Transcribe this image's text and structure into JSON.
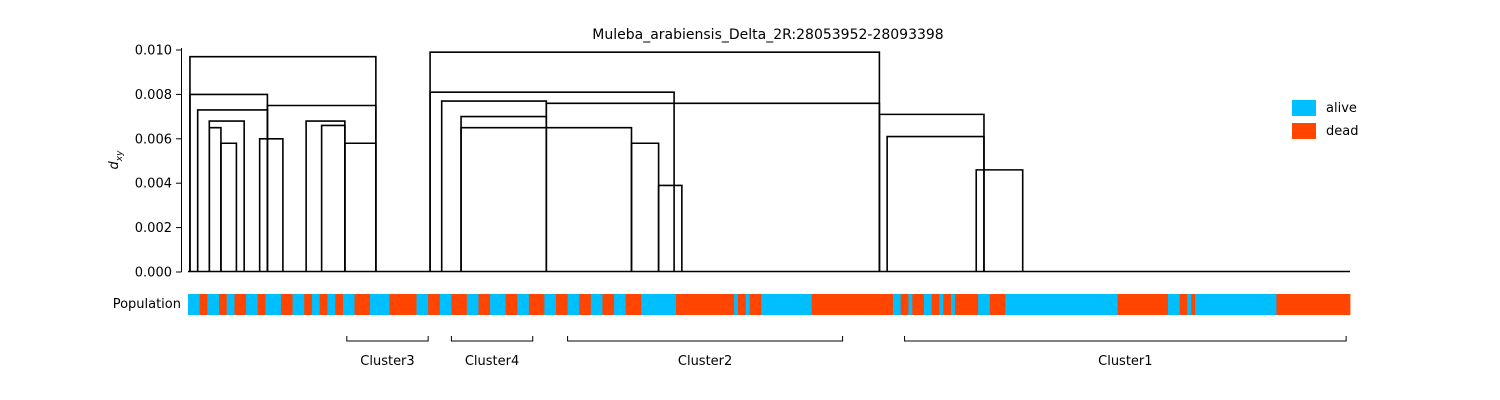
{
  "chart_data": {
    "type": "dendrogram",
    "title": "Muleba_arabiensis_Delta_2R:28053952-28093398",
    "ylabel_main": "d",
    "ylabel_sub": "xy",
    "ylim": [
      0,
      0.01
    ],
    "y_ticks": [
      "0.000",
      "0.002",
      "0.004",
      "0.006",
      "0.008",
      "0.010"
    ],
    "legend_placement": "right",
    "legend": [
      {
        "label": "alive",
        "color": "#00BFFF"
      },
      {
        "label": "dead",
        "color": "#FF4500"
      }
    ],
    "population_label": "Population",
    "leaf_count": 300,
    "merges": [
      {
        "left_leaf": 0,
        "right_leaf": 48,
        "height": 0.0097
      },
      {
        "left_leaf": 0,
        "right_leaf": 20,
        "height": 0.008
      },
      {
        "left_leaf": 20,
        "right_leaf": 48,
        "height": 0.0075
      },
      {
        "left_leaf": 2,
        "right_leaf": 20,
        "height": 0.0073
      },
      {
        "left_leaf": 5,
        "right_leaf": 14,
        "height": 0.0068
      },
      {
        "left_leaf": 5,
        "right_leaf": 8,
        "height": 0.0065
      },
      {
        "left_leaf": 8,
        "right_leaf": 12,
        "height": 0.0058
      },
      {
        "left_leaf": 18,
        "right_leaf": 24,
        "height": 0.006
      },
      {
        "left_leaf": 30,
        "right_leaf": 40,
        "height": 0.0068
      },
      {
        "left_leaf": 34,
        "right_leaf": 40,
        "height": 0.0066
      },
      {
        "left_leaf": 40,
        "right_leaf": 48,
        "height": 0.0058
      },
      {
        "left_leaf": 62,
        "right_leaf": 178,
        "height": 0.0099
      },
      {
        "left_leaf": 62,
        "right_leaf": 125,
        "height": 0.0081
      },
      {
        "left_leaf": 65,
        "right_leaf": 92,
        "height": 0.0077
      },
      {
        "left_leaf": 92,
        "right_leaf": 178,
        "height": 0.0076
      },
      {
        "left_leaf": 70,
        "right_leaf": 92,
        "height": 0.007
      },
      {
        "left_leaf": 70,
        "right_leaf": 114,
        "height": 0.0065
      },
      {
        "left_leaf": 178,
        "right_leaf": 205,
        "height": 0.0071
      },
      {
        "left_leaf": 180,
        "right_leaf": 205,
        "height": 0.0061
      },
      {
        "left_leaf": 203,
        "right_leaf": 215,
        "height": 0.0046
      },
      {
        "left_leaf": 114,
        "right_leaf": 121,
        "height": 0.0058
      },
      {
        "left_leaf": 121,
        "right_leaf": 127,
        "height": 0.0039
      }
    ],
    "population_blocks": [
      {
        "end": 3,
        "value": "alive"
      },
      {
        "end": 5,
        "value": "dead"
      },
      {
        "end": 8,
        "value": "alive"
      },
      {
        "end": 10,
        "value": "dead"
      },
      {
        "end": 12,
        "value": "alive"
      },
      {
        "end": 15,
        "value": "dead"
      },
      {
        "end": 18,
        "value": "alive"
      },
      {
        "end": 20,
        "value": "dead"
      },
      {
        "end": 24,
        "value": "alive"
      },
      {
        "end": 27,
        "value": "dead"
      },
      {
        "end": 30,
        "value": "alive"
      },
      {
        "end": 32,
        "value": "dead"
      },
      {
        "end": 34,
        "value": "alive"
      },
      {
        "end": 36,
        "value": "dead"
      },
      {
        "end": 38,
        "value": "alive"
      },
      {
        "end": 40,
        "value": "dead"
      },
      {
        "end": 43,
        "value": "alive"
      },
      {
        "end": 47,
        "value": "dead"
      },
      {
        "end": 52,
        "value": "alive"
      },
      {
        "end": 59,
        "value": "dead"
      },
      {
        "end": 62,
        "value": "alive"
      },
      {
        "end": 65,
        "value": "dead"
      },
      {
        "end": 68,
        "value": "alive"
      },
      {
        "end": 72,
        "value": "dead"
      },
      {
        "end": 75,
        "value": "alive"
      },
      {
        "end": 78,
        "value": "dead"
      },
      {
        "end": 82,
        "value": "alive"
      },
      {
        "end": 85,
        "value": "dead"
      },
      {
        "end": 88,
        "value": "alive"
      },
      {
        "end": 92,
        "value": "dead"
      },
      {
        "end": 95,
        "value": "alive"
      },
      {
        "end": 98,
        "value": "dead"
      },
      {
        "end": 101,
        "value": "alive"
      },
      {
        "end": 104,
        "value": "dead"
      },
      {
        "end": 107,
        "value": "alive"
      },
      {
        "end": 110,
        "value": "dead"
      },
      {
        "end": 113,
        "value": "alive"
      },
      {
        "end": 117,
        "value": "dead"
      },
      {
        "end": 126,
        "value": "alive"
      },
      {
        "end": 128,
        "value": "dead"
      },
      {
        "end": 141,
        "value": "dead"
      },
      {
        "end": 142,
        "value": "alive"
      },
      {
        "end": 144,
        "value": "dead"
      },
      {
        "end": 145,
        "value": "alive"
      },
      {
        "end": 148,
        "value": "dead"
      },
      {
        "end": 161,
        "value": "alive"
      },
      {
        "end": 174,
        "value": "dead"
      },
      {
        "end": 182,
        "value": "dead"
      },
      {
        "end": 184,
        "value": "alive"
      },
      {
        "end": 186,
        "value": "dead"
      },
      {
        "end": 187,
        "value": "alive"
      },
      {
        "end": 190,
        "value": "dead"
      },
      {
        "end": 192,
        "value": "alive"
      },
      {
        "end": 194,
        "value": "dead"
      },
      {
        "end": 195,
        "value": "alive"
      },
      {
        "end": 197,
        "value": "dead"
      },
      {
        "end": 198,
        "value": "alive"
      },
      {
        "end": 200,
        "value": "dead"
      },
      {
        "end": 204,
        "value": "dead"
      },
      {
        "end": 207,
        "value": "alive"
      },
      {
        "end": 211,
        "value": "dead"
      },
      {
        "end": 240,
        "value": "alive"
      },
      {
        "end": 253,
        "value": "dead"
      },
      {
        "end": 256,
        "value": "alive"
      },
      {
        "end": 258,
        "value": "dead"
      },
      {
        "end": 259,
        "value": "alive"
      },
      {
        "end": 260,
        "value": "dead"
      },
      {
        "end": 281,
        "value": "alive"
      },
      {
        "end": 300,
        "value": "dead"
      }
    ],
    "clusters": [
      {
        "label": "Cluster3",
        "start_leaf": 41,
        "end_leaf": 62
      },
      {
        "label": "Cluster4",
        "start_leaf": 68,
        "end_leaf": 89
      },
      {
        "label": "Cluster2",
        "start_leaf": 98,
        "end_leaf": 169
      },
      {
        "label": "Cluster1",
        "start_leaf": 185,
        "end_leaf": 299
      }
    ]
  }
}
